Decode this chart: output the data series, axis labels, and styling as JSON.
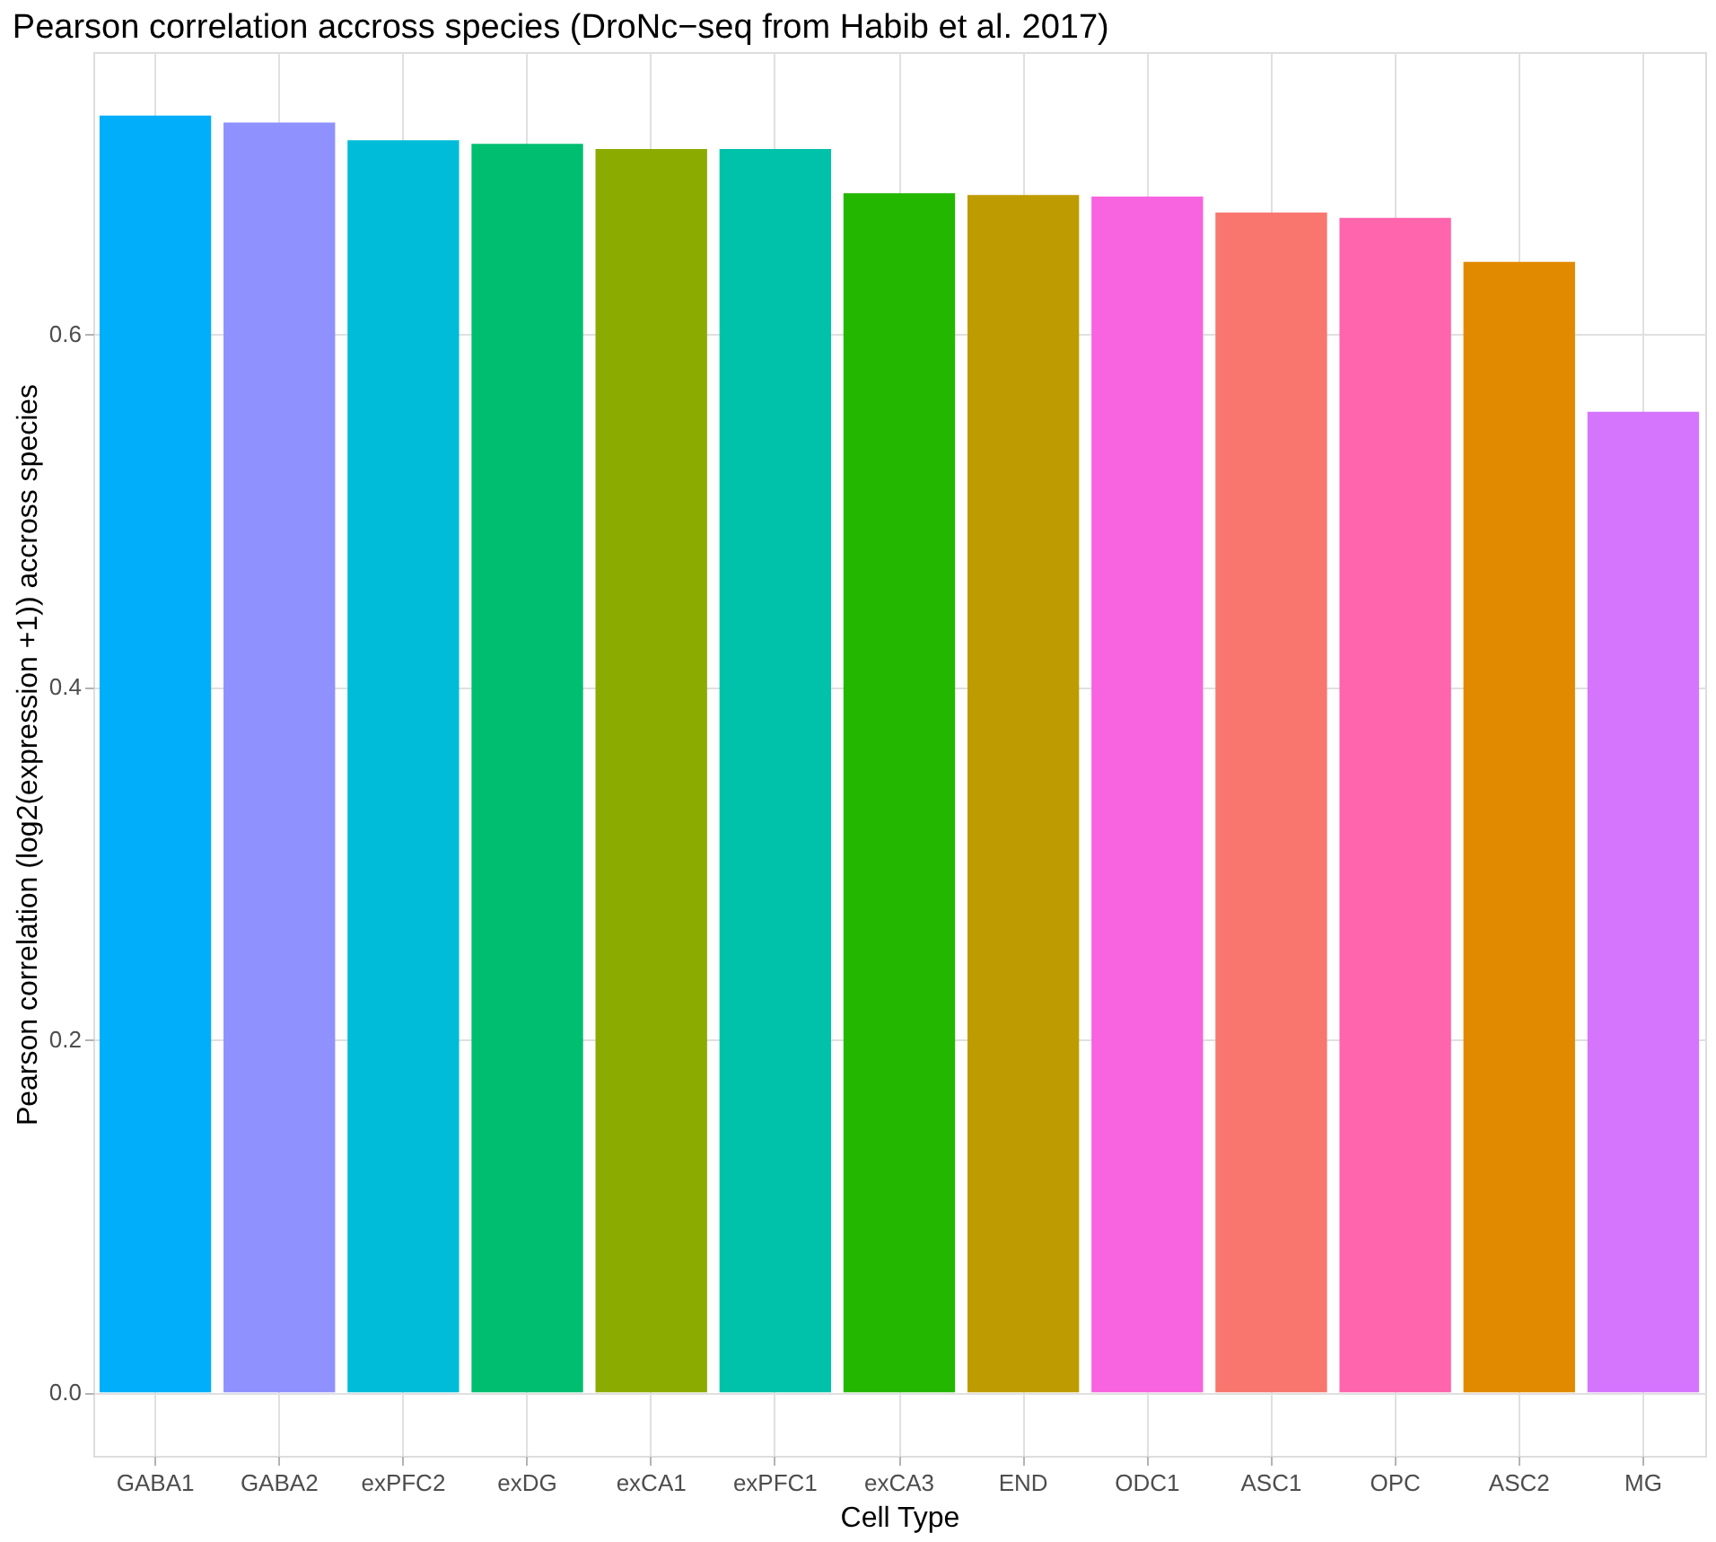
{
  "chart_data": {
    "type": "bar",
    "title": "Pearson correlation accross species (DroNc−seq from Habib et al. 2017)",
    "xlabel": "Cell Type",
    "ylabel": "Pearson correlation (log2(expression +1)) accross species",
    "categories": [
      "GABA1",
      "GABA2",
      "exPFC2",
      "exDG",
      "exCA1",
      "exPFC1",
      "exCA3",
      "END",
      "ODC1",
      "ASC1",
      "OPC",
      "ASC2",
      "MG"
    ],
    "values": [
      0.724,
      0.72,
      0.71,
      0.708,
      0.705,
      0.705,
      0.68,
      0.679,
      0.678,
      0.669,
      0.666,
      0.641,
      0.556
    ],
    "colors": [
      "#00aefa",
      "#8f91ff",
      "#00bcd8",
      "#00be70",
      "#8cab00",
      "#00c1aa",
      "#24b700",
      "#be9c00",
      "#f863df",
      "#f8766d",
      "#ff65ac",
      "#e18a00",
      "#d575fe"
    ],
    "ylim": [
      -0.036,
      0.76
    ],
    "yticks": [
      {
        "value": 0,
        "label": "0.0"
      },
      0.2,
      0.4,
      0.6
    ],
    "grid": true,
    "legend": false
  }
}
